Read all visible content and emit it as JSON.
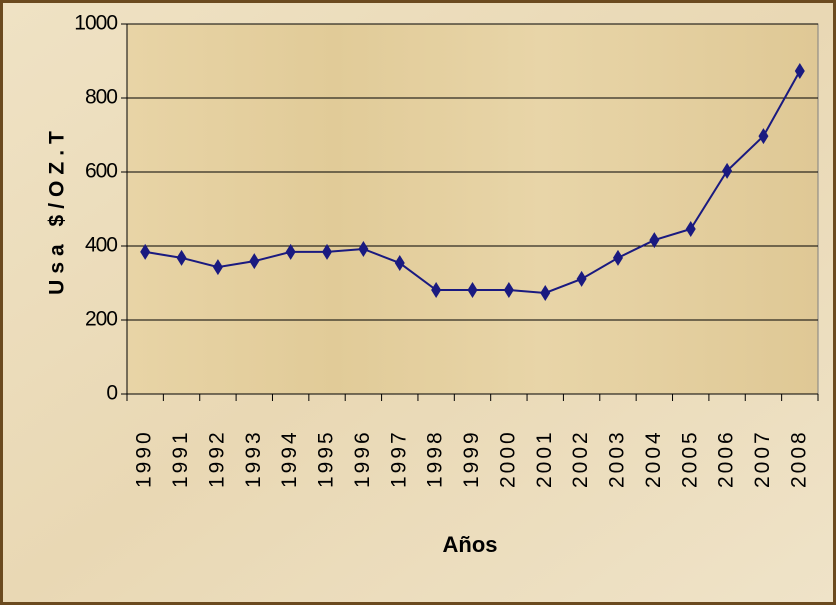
{
  "chart_data": {
    "type": "line",
    "categories": [
      "1990",
      "1991",
      "1992",
      "1993",
      "1994",
      "1995",
      "1996",
      "1997",
      "1998",
      "1999",
      "2000",
      "2001",
      "2002",
      "2003",
      "2004",
      "2005",
      "2006",
      "2007",
      "2008"
    ],
    "series": [
      {
        "name": "Usa $/OZ.T",
        "color": "#1a1a80",
        "values": [
          384,
          368,
          343,
          359,
          384,
          384,
          392,
          354,
          281,
          281,
          281,
          273,
          311,
          368,
          416,
          446,
          603,
          697,
          873
        ]
      }
    ],
    "ylabel": "Usa $/OZ.T",
    "xlabel": "Años",
    "ylim": [
      0,
      1000
    ],
    "yticks": [
      0,
      200,
      400,
      600,
      800,
      1000
    ],
    "grid": true
  }
}
